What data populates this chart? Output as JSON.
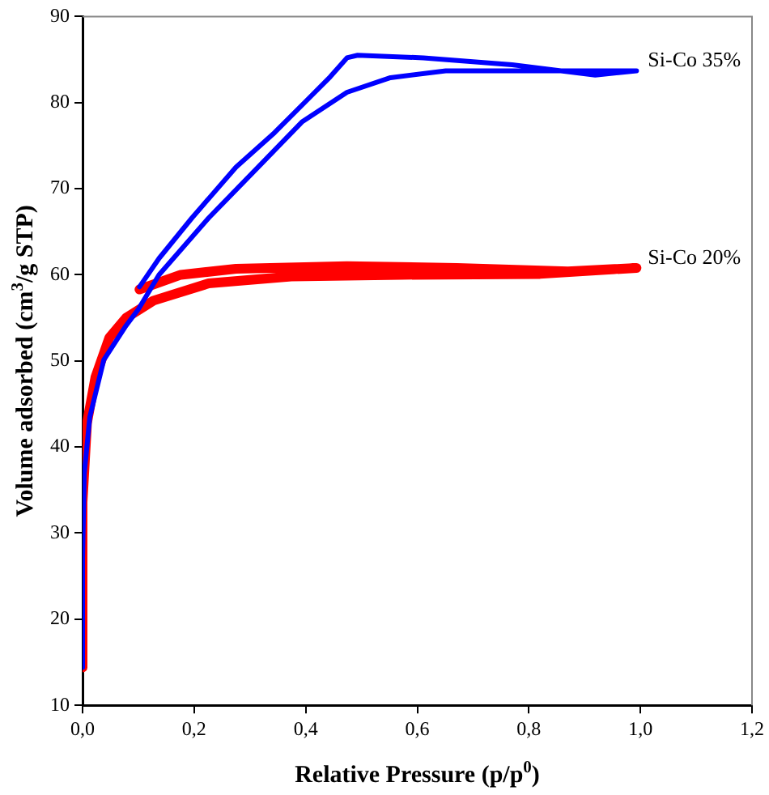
{
  "chart_data": {
    "type": "line",
    "xlabel": "Relative Pressure (p/p$^{0}$)",
    "ylabel": "Volume adsorbed (cm$^{3}$/g STP)",
    "xlim": [
      0,
      1.2
    ],
    "xticks": [
      {
        "value": 0,
        "label": "0,0"
      },
      {
        "value": 0.2,
        "label": "0,2"
      },
      {
        "value": 0.4,
        "label": "0,4"
      },
      {
        "value": 0.6,
        "label": "0,6"
      },
      {
        "value": 0.8,
        "label": "0,8"
      },
      {
        "value": 1,
        "label": "1,0"
      },
      {
        "value": 1.2,
        "label": "1,2"
      }
    ],
    "ylim": [
      10,
      90
    ],
    "yticks": [
      10,
      20,
      30,
      40,
      50,
      60,
      70,
      80,
      90
    ],
    "grid": false,
    "legend": false,
    "marker": "none",
    "line_style": "solid",
    "series": [
      {
        "name": "Si-Co 35%",
        "color": "#0000ff",
        "x": [
          0,
          0,
          0.003,
          0.013,
          0.038,
          0.078,
          0.1,
          0.137,
          0.226,
          0.325,
          0.394,
          0.474,
          0.552,
          0.651,
          0.82,
          0.993,
          0.919,
          0.77,
          0.611,
          0.493,
          0.474,
          0.444,
          0.404,
          0.344,
          0.275,
          0.196,
          0.137,
          0.102
        ],
        "values": [
          14.4,
          27,
          36.9,
          43.5,
          50.1,
          54.1,
          56,
          60,
          66.6,
          73.2,
          77.8,
          81.2,
          82.9,
          83.7,
          83.7,
          83.7,
          83.2,
          84.4,
          85.2,
          85.5,
          85.2,
          83,
          80.4,
          76.5,
          72.5,
          66.6,
          61.9,
          58.6
        ]
      },
      {
        "name": "Si-Co 20%",
        "color": "#ff0000",
        "x": [
          0,
          0,
          0.008,
          0.023,
          0.048,
          0.078,
          0.127,
          0.226,
          0.374,
          0.572,
          0.82,
          0.993,
          0.87,
          0.671,
          0.474,
          0.275,
          0.176,
          0.102
        ],
        "values": [
          14.4,
          33.6,
          42.8,
          48.1,
          52.7,
          55,
          57,
          59,
          59.8,
          60,
          60.1,
          60.8,
          60.4,
          60.8,
          61,
          60.7,
          60,
          58.3
        ]
      }
    ]
  }
}
